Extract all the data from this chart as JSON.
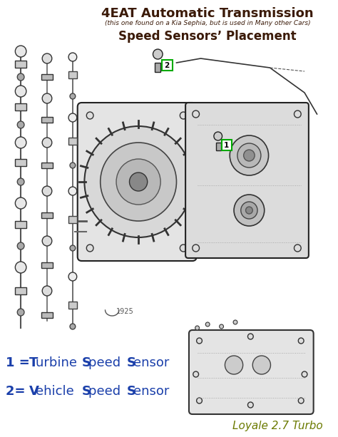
{
  "title_line1": "4EAT Automatic Transmission",
  "title_line2": "(this one found on a Kia Sephia, but is used in Many other Cars)",
  "title_line3": "Speed Sensors’ Placement",
  "watermark": "Loyale 2.7 Turbo",
  "bg_color": "#ffffff",
  "title_color": "#3b1a08",
  "legend_color": "#1a3faa",
  "watermark_color": "#6b7a00",
  "box1_color": "#00aa00",
  "box2_color": "#00aa00"
}
